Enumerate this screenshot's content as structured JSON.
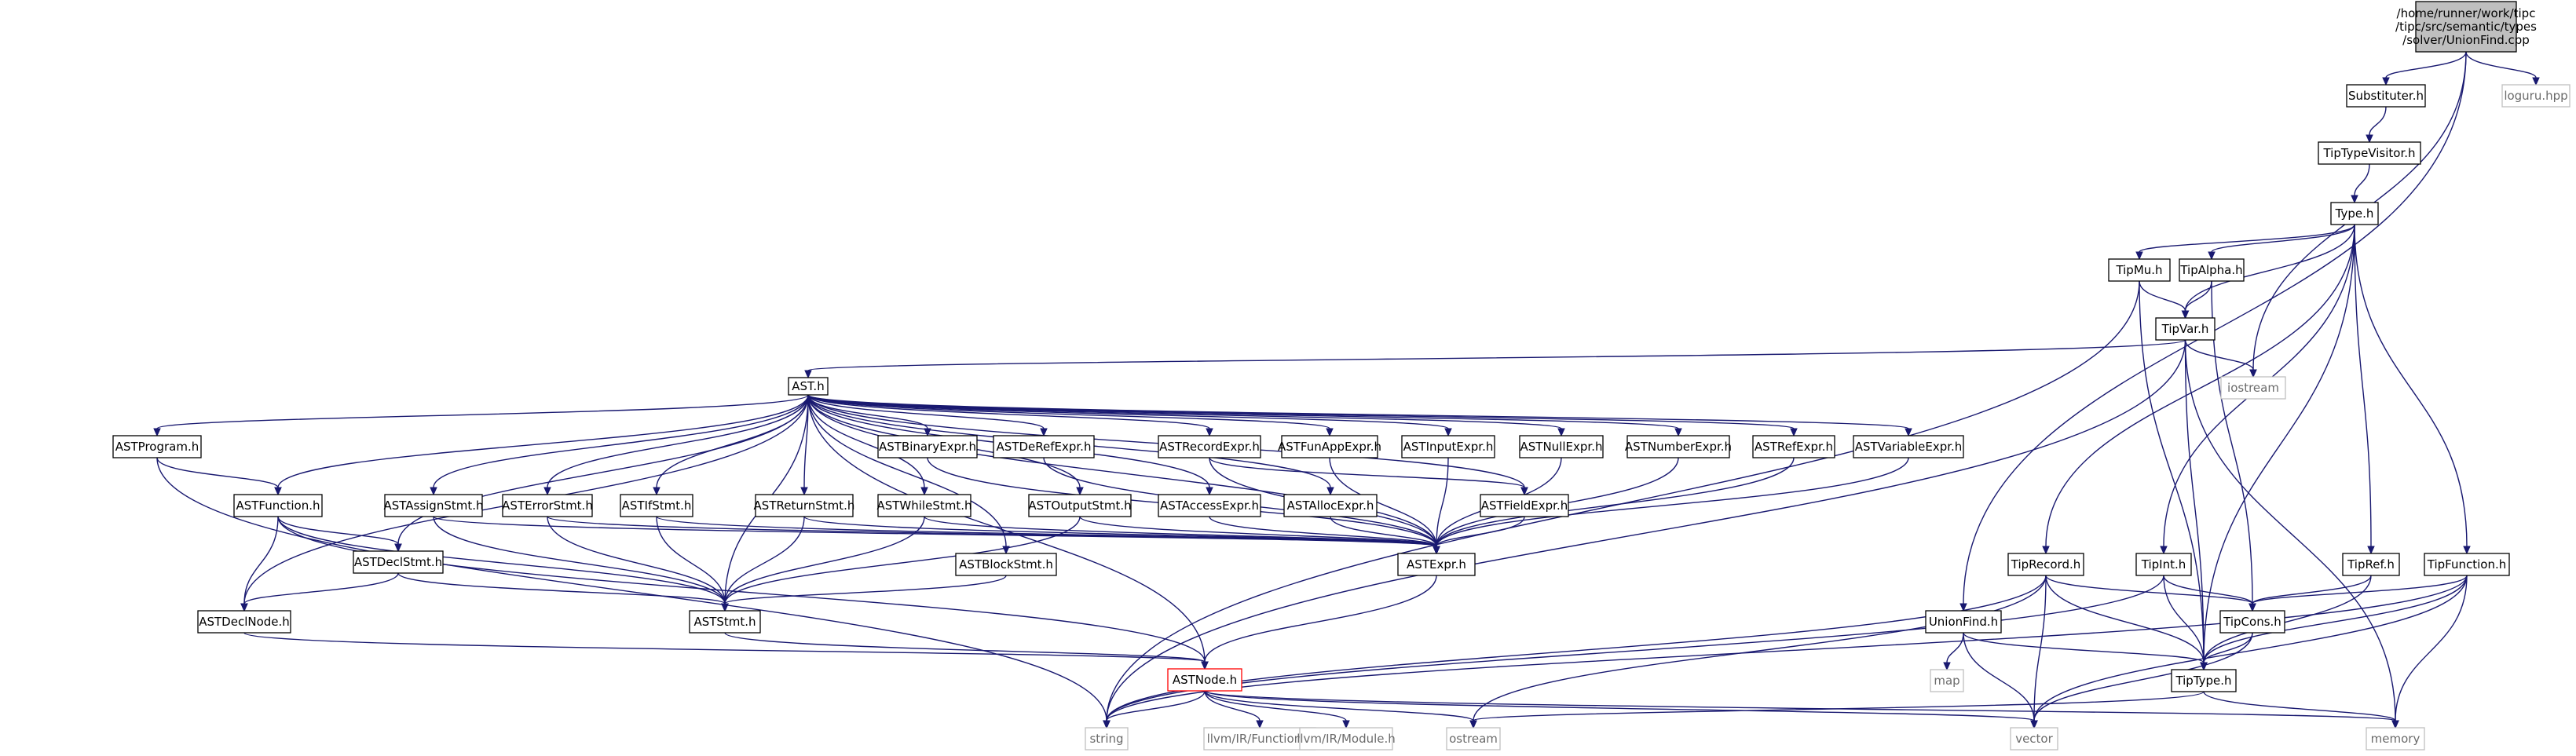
{
  "diagram": {
    "title": "",
    "nodes": [
      {
        "id": "root",
        "lines": [
          "/home/runner/work/tipc",
          "/tipc/src/semantic/types",
          "/solver/UnionFind.cpp"
        ],
        "kind": "root"
      },
      {
        "id": "subst",
        "lines": [
          "Substituter.h"
        ],
        "kind": "normal"
      },
      {
        "id": "loguru",
        "lines": [
          "loguru.hpp"
        ],
        "kind": "ext"
      },
      {
        "id": "visitor",
        "lines": [
          "TipTypeVisitor.h"
        ],
        "kind": "normal"
      },
      {
        "id": "type",
        "lines": [
          "Type.h"
        ],
        "kind": "normal"
      },
      {
        "id": "mu",
        "lines": [
          "TipMu.h"
        ],
        "kind": "normal"
      },
      {
        "id": "alpha",
        "lines": [
          "TipAlpha.h"
        ],
        "kind": "normal"
      },
      {
        "id": "var",
        "lines": [
          "TipVar.h"
        ],
        "kind": "normal"
      },
      {
        "id": "iostream",
        "lines": [
          "iostream"
        ],
        "kind": "ext"
      },
      {
        "id": "ast",
        "lines": [
          "AST.h"
        ],
        "kind": "normal"
      },
      {
        "id": "program",
        "lines": [
          "ASTProgram.h"
        ],
        "kind": "normal"
      },
      {
        "id": "function",
        "lines": [
          "ASTFunction.h"
        ],
        "kind": "normal"
      },
      {
        "id": "declstmt",
        "lines": [
          "ASTDeclStmt.h"
        ],
        "kind": "normal"
      },
      {
        "id": "declnode",
        "lines": [
          "ASTDeclNode.h"
        ],
        "kind": "normal"
      },
      {
        "id": "assign",
        "lines": [
          "ASTAssignStmt.h"
        ],
        "kind": "normal"
      },
      {
        "id": "error",
        "lines": [
          "ASTErrorStmt.h"
        ],
        "kind": "normal"
      },
      {
        "id": "ifstmt",
        "lines": [
          "ASTIfStmt.h"
        ],
        "kind": "normal"
      },
      {
        "id": "retstmt",
        "lines": [
          "ASTReturnStmt.h"
        ],
        "kind": "normal"
      },
      {
        "id": "whilestmt",
        "lines": [
          "ASTWhileStmt.h"
        ],
        "kind": "normal"
      },
      {
        "id": "outstmt",
        "lines": [
          "ASTOutputStmt.h"
        ],
        "kind": "normal"
      },
      {
        "id": "blockstmt",
        "lines": [
          "ASTBlockStmt.h"
        ],
        "kind": "normal"
      },
      {
        "id": "binexpr",
        "lines": [
          "ASTBinaryExpr.h"
        ],
        "kind": "normal"
      },
      {
        "id": "deref",
        "lines": [
          "ASTDeRefExpr.h"
        ],
        "kind": "normal"
      },
      {
        "id": "record",
        "lines": [
          "ASTRecordExpr.h"
        ],
        "kind": "normal"
      },
      {
        "id": "funapp",
        "lines": [
          "ASTFunAppExpr.h"
        ],
        "kind": "normal"
      },
      {
        "id": "input",
        "lines": [
          "ASTInputExpr.h"
        ],
        "kind": "normal"
      },
      {
        "id": "nullexpr",
        "lines": [
          "ASTNullExpr.h"
        ],
        "kind": "normal"
      },
      {
        "id": "number",
        "lines": [
          "ASTNumberExpr.h"
        ],
        "kind": "normal"
      },
      {
        "id": "refexpr",
        "lines": [
          "ASTRefExpr.h"
        ],
        "kind": "normal"
      },
      {
        "id": "varexpr",
        "lines": [
          "ASTVariableExpr.h"
        ],
        "kind": "normal"
      },
      {
        "id": "access",
        "lines": [
          "ASTAccessExpr.h"
        ],
        "kind": "normal"
      },
      {
        "id": "alloc",
        "lines": [
          "ASTAllocExpr.h"
        ],
        "kind": "normal"
      },
      {
        "id": "field",
        "lines": [
          "ASTFieldExpr.h"
        ],
        "kind": "normal"
      },
      {
        "id": "expr",
        "lines": [
          "ASTExpr.h"
        ],
        "kind": "normal"
      },
      {
        "id": "stmt",
        "lines": [
          "ASTStmt.h"
        ],
        "kind": "normal"
      },
      {
        "id": "node",
        "lines": [
          "ASTNode.h"
        ],
        "kind": "red"
      },
      {
        "id": "tiprecord",
        "lines": [
          "TipRecord.h"
        ],
        "kind": "normal"
      },
      {
        "id": "tipint",
        "lines": [
          "TipInt.h"
        ],
        "kind": "normal"
      },
      {
        "id": "tipref",
        "lines": [
          "TipRef.h"
        ],
        "kind": "normal"
      },
      {
        "id": "tipfunc",
        "lines": [
          "TipFunction.h"
        ],
        "kind": "normal"
      },
      {
        "id": "unionfind",
        "lines": [
          "UnionFind.h"
        ],
        "kind": "normal"
      },
      {
        "id": "tipcons",
        "lines": [
          "TipCons.h"
        ],
        "kind": "normal"
      },
      {
        "id": "map",
        "lines": [
          "map"
        ],
        "kind": "ext"
      },
      {
        "id": "tiptype",
        "lines": [
          "TipType.h"
        ],
        "kind": "normal"
      },
      {
        "id": "string",
        "lines": [
          "string"
        ],
        "kind": "ext"
      },
      {
        "id": "llvmfunc",
        "lines": [
          "llvm/IR/Function.h"
        ],
        "kind": "ext"
      },
      {
        "id": "llvmmod",
        "lines": [
          "llvm/IR/Module.h"
        ],
        "kind": "ext"
      },
      {
        "id": "ostream",
        "lines": [
          "ostream"
        ],
        "kind": "ext"
      },
      {
        "id": "vector",
        "lines": [
          "vector"
        ],
        "kind": "ext"
      },
      {
        "id": "memory",
        "lines": [
          "memory"
        ],
        "kind": "ext"
      }
    ],
    "edges": [
      [
        "root",
        "subst"
      ],
      [
        "root",
        "loguru"
      ],
      [
        "root",
        "iostream"
      ],
      [
        "root",
        "unionfind"
      ],
      [
        "subst",
        "visitor"
      ],
      [
        "visitor",
        "type"
      ],
      [
        "type",
        "mu"
      ],
      [
        "type",
        "alpha"
      ],
      [
        "type",
        "var"
      ],
      [
        "type",
        "tiprecord"
      ],
      [
        "type",
        "tipint"
      ],
      [
        "type",
        "tipref"
      ],
      [
        "type",
        "tipfunc"
      ],
      [
        "type",
        "tiptype"
      ],
      [
        "mu",
        "var"
      ],
      [
        "mu",
        "tiptype"
      ],
      [
        "mu",
        "string"
      ],
      [
        "alpha",
        "var"
      ],
      [
        "alpha",
        "tipcons"
      ],
      [
        "var",
        "ast"
      ],
      [
        "var",
        "iostream"
      ],
      [
        "var",
        "tiptype"
      ],
      [
        "var",
        "string"
      ],
      [
        "var",
        "memory"
      ],
      [
        "ast",
        "program"
      ],
      [
        "ast",
        "function"
      ],
      [
        "ast",
        "declstmt"
      ],
      [
        "ast",
        "declnode"
      ],
      [
        "ast",
        "assign"
      ],
      [
        "ast",
        "error"
      ],
      [
        "ast",
        "ifstmt"
      ],
      [
        "ast",
        "retstmt"
      ],
      [
        "ast",
        "whilestmt"
      ],
      [
        "ast",
        "outstmt"
      ],
      [
        "ast",
        "blockstmt"
      ],
      [
        "ast",
        "binexpr"
      ],
      [
        "ast",
        "deref"
      ],
      [
        "ast",
        "record"
      ],
      [
        "ast",
        "funapp"
      ],
      [
        "ast",
        "input"
      ],
      [
        "ast",
        "nullexpr"
      ],
      [
        "ast",
        "number"
      ],
      [
        "ast",
        "refexpr"
      ],
      [
        "ast",
        "varexpr"
      ],
      [
        "ast",
        "access"
      ],
      [
        "ast",
        "alloc"
      ],
      [
        "ast",
        "field"
      ],
      [
        "ast",
        "expr"
      ],
      [
        "ast",
        "stmt"
      ],
      [
        "ast",
        "node"
      ],
      [
        "program",
        "function"
      ],
      [
        "program",
        "string"
      ],
      [
        "function",
        "declstmt"
      ],
      [
        "function",
        "declnode"
      ],
      [
        "function",
        "stmt"
      ],
      [
        "function",
        "node"
      ],
      [
        "declstmt",
        "declnode"
      ],
      [
        "declstmt",
        "stmt"
      ],
      [
        "declnode",
        "node"
      ],
      [
        "assign",
        "expr"
      ],
      [
        "assign",
        "stmt"
      ],
      [
        "error",
        "expr"
      ],
      [
        "error",
        "stmt"
      ],
      [
        "ifstmt",
        "expr"
      ],
      [
        "ifstmt",
        "stmt"
      ],
      [
        "retstmt",
        "expr"
      ],
      [
        "retstmt",
        "stmt"
      ],
      [
        "whilestmt",
        "expr"
      ],
      [
        "whilestmt",
        "stmt"
      ],
      [
        "outstmt",
        "expr"
      ],
      [
        "outstmt",
        "stmt"
      ],
      [
        "blockstmt",
        "stmt"
      ],
      [
        "binexpr",
        "expr"
      ],
      [
        "deref",
        "expr"
      ],
      [
        "record",
        "expr"
      ],
      [
        "record",
        "field"
      ],
      [
        "funapp",
        "expr"
      ],
      [
        "input",
        "expr"
      ],
      [
        "nullexpr",
        "expr"
      ],
      [
        "number",
        "expr"
      ],
      [
        "refexpr",
        "expr"
      ],
      [
        "varexpr",
        "expr"
      ],
      [
        "access",
        "expr"
      ],
      [
        "alloc",
        "expr"
      ],
      [
        "field",
        "expr"
      ],
      [
        "expr",
        "node"
      ],
      [
        "stmt",
        "node"
      ],
      [
        "node",
        "string"
      ],
      [
        "node",
        "llvmfunc"
      ],
      [
        "node",
        "llvmmod"
      ],
      [
        "node",
        "ostream"
      ],
      [
        "node",
        "vector"
      ],
      [
        "node",
        "memory"
      ],
      [
        "tiprecord",
        "tipcons"
      ],
      [
        "tiprecord",
        "tiptype"
      ],
      [
        "tiprecord",
        "vector"
      ],
      [
        "tiprecord",
        "ostream"
      ],
      [
        "tiprecord",
        "string"
      ],
      [
        "tipint",
        "tipcons"
      ],
      [
        "tipint",
        "tiptype"
      ],
      [
        "tipint",
        "string"
      ],
      [
        "tipref",
        "tipcons"
      ],
      [
        "tipref",
        "tiptype"
      ],
      [
        "tipfunc",
        "tipcons"
      ],
      [
        "tipfunc",
        "tiptype"
      ],
      [
        "tipfunc",
        "vector"
      ],
      [
        "tipfunc",
        "memory"
      ],
      [
        "tipfunc",
        "string"
      ],
      [
        "unionfind",
        "map"
      ],
      [
        "unionfind",
        "tiptype"
      ],
      [
        "unionfind",
        "vector"
      ],
      [
        "tipcons",
        "tiptype"
      ],
      [
        "tipcons",
        "vector"
      ],
      [
        "tiptype",
        "ostream"
      ],
      [
        "tiptype",
        "memory"
      ]
    ]
  }
}
